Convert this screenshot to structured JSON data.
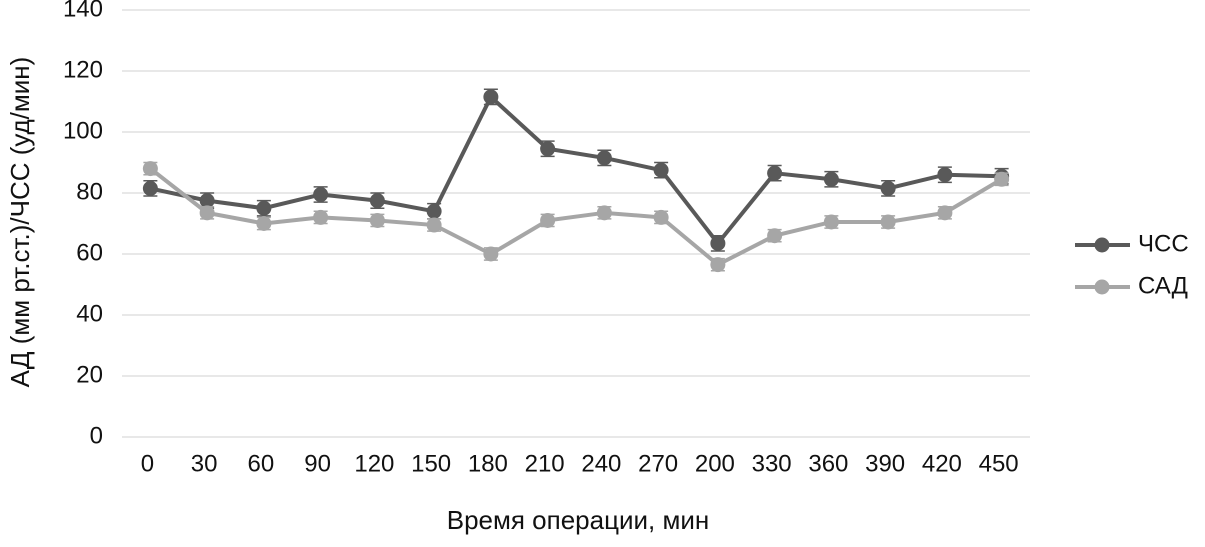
{
  "chart_data": {
    "type": "line",
    "x_label": "Время операции, мин",
    "y_label": "АД (мм рт.ст.)/ЧСС (уд/мин)",
    "categories": [
      "0",
      "30",
      "60",
      "90",
      "120",
      "150",
      "180",
      "210",
      "240",
      "270",
      "200",
      "330",
      "360",
      "390",
      "420",
      "450"
    ],
    "series": [
      {
        "name": "ЧСС",
        "color": "#595959",
        "values": [
          81.5,
          77.5,
          75,
          79.5,
          77.5,
          74,
          111.5,
          94.5,
          91.5,
          87.5,
          63.5,
          86.5,
          84.5,
          81.5,
          86,
          85.5
        ],
        "errors": [
          2.5,
          2.5,
          2.5,
          2.5,
          2.5,
          2.5,
          2.5,
          2.5,
          2.5,
          2.5,
          2.5,
          2.5,
          2.5,
          2.5,
          2.5,
          2.5
        ]
      },
      {
        "name": "САД",
        "color": "#a6a6a6",
        "values": [
          88,
          73.5,
          70,
          72,
          71,
          69.5,
          60,
          71,
          73.5,
          72,
          56.5,
          66,
          70.5,
          70.5,
          73.5,
          84.5
        ],
        "errors": [
          2,
          2,
          2,
          2,
          2,
          2,
          2,
          2,
          2,
          2,
          2,
          2,
          2,
          2,
          2,
          2
        ]
      }
    ],
    "ylim": [
      0,
      140
    ],
    "yticks": [
      0,
      20,
      40,
      60,
      80,
      100,
      120,
      140
    ],
    "grid": true,
    "legend": "right"
  }
}
